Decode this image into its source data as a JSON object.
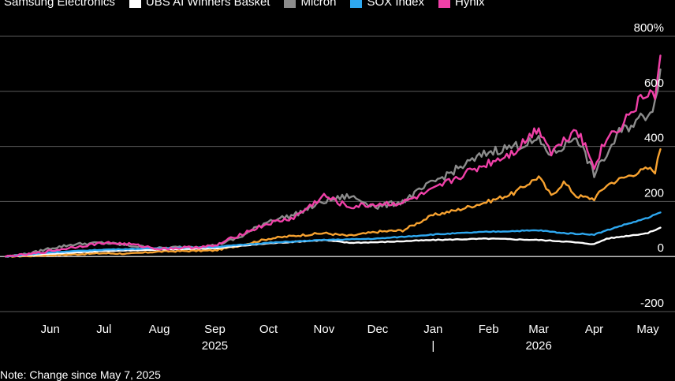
{
  "chart_data": {
    "type": "line",
    "note": "Note: Change since May 7, 2025",
    "legend_placement": "top",
    "grid": true,
    "ylim": [
      -200,
      800
    ],
    "y_ticks": [
      -200,
      0,
      200,
      400,
      600,
      800
    ],
    "y_tick_labels": [
      "-200",
      "0",
      "200",
      "400",
      "600",
      "800%"
    ],
    "x_range": [
      "2025-05-07",
      "2026-05-10"
    ],
    "x_ticks": [
      {
        "date": "2025-06-01",
        "label": "Jun"
      },
      {
        "date": "2025-07-01",
        "label": "Jul"
      },
      {
        "date": "2025-08-01",
        "label": "Aug"
      },
      {
        "date": "2025-09-01",
        "label": "Sep"
      },
      {
        "date": "2025-10-01",
        "label": "Oct"
      },
      {
        "date": "2025-11-01",
        "label": "Nov"
      },
      {
        "date": "2025-12-01",
        "label": "Dec"
      },
      {
        "date": "2026-01-01",
        "label": "Jan"
      },
      {
        "date": "2026-02-01",
        "label": "Feb"
      },
      {
        "date": "2026-03-01",
        "label": "Mar"
      },
      {
        "date": "2026-04-01",
        "label": "Apr"
      },
      {
        "date": "2026-05-01",
        "label": "May"
      }
    ],
    "year_labels": [
      {
        "date": "2025-09-01",
        "label": "2025"
      },
      {
        "date": "2026-03-01",
        "label": "2026"
      }
    ],
    "year_divider_date": "2026-01-01",
    "year_divider_label": "|",
    "series": [
      {
        "name": "Samsung Electronics",
        "color": "#f7a230",
        "points": [
          [
            "2025-05-07",
            0
          ],
          [
            "2025-05-20",
            2
          ],
          [
            "2025-06-01",
            5
          ],
          [
            "2025-06-15",
            8
          ],
          [
            "2025-07-01",
            12
          ],
          [
            "2025-07-15",
            10
          ],
          [
            "2025-08-01",
            18
          ],
          [
            "2025-08-15",
            20
          ],
          [
            "2025-09-01",
            22
          ],
          [
            "2025-09-15",
            40
          ],
          [
            "2025-10-01",
            65
          ],
          [
            "2025-10-15",
            75
          ],
          [
            "2025-11-01",
            85
          ],
          [
            "2025-11-15",
            75
          ],
          [
            "2025-12-01",
            90
          ],
          [
            "2025-12-15",
            95
          ],
          [
            "2026-01-01",
            150
          ],
          [
            "2026-01-15",
            170
          ],
          [
            "2026-02-01",
            200
          ],
          [
            "2026-02-15",
            230
          ],
          [
            "2026-03-01",
            290
          ],
          [
            "2026-03-08",
            220
          ],
          [
            "2026-03-15",
            270
          ],
          [
            "2026-03-22",
            220
          ],
          [
            "2026-04-01",
            210
          ],
          [
            "2026-04-08",
            260
          ],
          [
            "2026-04-15",
            280
          ],
          [
            "2026-05-01",
            320
          ],
          [
            "2026-05-05",
            310
          ],
          [
            "2026-05-08",
            390
          ]
        ]
      },
      {
        "name": "UBS AI Winners Basket",
        "color": "#ffffff",
        "points": [
          [
            "2025-05-07",
            0
          ],
          [
            "2025-06-01",
            10
          ],
          [
            "2025-07-01",
            20
          ],
          [
            "2025-08-01",
            25
          ],
          [
            "2025-09-01",
            30
          ],
          [
            "2025-10-01",
            48
          ],
          [
            "2025-11-01",
            60
          ],
          [
            "2025-11-15",
            50
          ],
          [
            "2025-12-01",
            52
          ],
          [
            "2026-01-01",
            60
          ],
          [
            "2026-02-01",
            65
          ],
          [
            "2026-03-01",
            60
          ],
          [
            "2026-03-15",
            55
          ],
          [
            "2026-04-01",
            45
          ],
          [
            "2026-04-08",
            65
          ],
          [
            "2026-05-01",
            85
          ],
          [
            "2026-05-08",
            105
          ]
        ]
      },
      {
        "name": "Micron",
        "color": "#8c8c8c",
        "points": [
          [
            "2025-05-07",
            0
          ],
          [
            "2025-05-20",
            10
          ],
          [
            "2025-06-01",
            30
          ],
          [
            "2025-06-15",
            45
          ],
          [
            "2025-07-01",
            50
          ],
          [
            "2025-07-15",
            40
          ],
          [
            "2025-08-01",
            30
          ],
          [
            "2025-08-15",
            35
          ],
          [
            "2025-09-01",
            40
          ],
          [
            "2025-09-15",
            70
          ],
          [
            "2025-10-01",
            130
          ],
          [
            "2025-10-15",
            150
          ],
          [
            "2025-11-01",
            200
          ],
          [
            "2025-11-15",
            220
          ],
          [
            "2025-12-01",
            180
          ],
          [
            "2025-12-15",
            200
          ],
          [
            "2026-01-01",
            270
          ],
          [
            "2026-01-15",
            320
          ],
          [
            "2026-02-01",
            380
          ],
          [
            "2026-02-15",
            400
          ],
          [
            "2026-03-01",
            420
          ],
          [
            "2026-03-08",
            370
          ],
          [
            "2026-03-15",
            400
          ],
          [
            "2026-03-22",
            440
          ],
          [
            "2026-04-01",
            300
          ],
          [
            "2026-04-08",
            370
          ],
          [
            "2026-04-15",
            450
          ],
          [
            "2026-05-01",
            520
          ],
          [
            "2026-05-05",
            560
          ],
          [
            "2026-05-08",
            680
          ]
        ]
      },
      {
        "name": "SOX Index",
        "color": "#2ea8f0",
        "points": [
          [
            "2025-05-07",
            0
          ],
          [
            "2025-06-01",
            15
          ],
          [
            "2025-07-01",
            25
          ],
          [
            "2025-08-01",
            30
          ],
          [
            "2025-09-01",
            35
          ],
          [
            "2025-10-01",
            50
          ],
          [
            "2025-11-01",
            60
          ],
          [
            "2025-12-01",
            65
          ],
          [
            "2026-01-01",
            80
          ],
          [
            "2026-02-01",
            90
          ],
          [
            "2026-03-01",
            95
          ],
          [
            "2026-03-15",
            85
          ],
          [
            "2026-04-01",
            80
          ],
          [
            "2026-04-15",
            110
          ],
          [
            "2026-05-01",
            140
          ],
          [
            "2026-05-08",
            160
          ]
        ]
      },
      {
        "name": "Hynix",
        "color": "#f040a8",
        "points": [
          [
            "2025-05-07",
            0
          ],
          [
            "2025-05-20",
            8
          ],
          [
            "2025-06-01",
            20
          ],
          [
            "2025-06-15",
            35
          ],
          [
            "2025-07-01",
            50
          ],
          [
            "2025-07-15",
            45
          ],
          [
            "2025-08-01",
            28
          ],
          [
            "2025-08-15",
            32
          ],
          [
            "2025-09-01",
            38
          ],
          [
            "2025-09-15",
            80
          ],
          [
            "2025-10-01",
            120
          ],
          [
            "2025-10-15",
            140
          ],
          [
            "2025-11-01",
            220
          ],
          [
            "2025-11-15",
            180
          ],
          [
            "2025-12-01",
            190
          ],
          [
            "2025-12-15",
            195
          ],
          [
            "2026-01-01",
            240
          ],
          [
            "2026-01-15",
            290
          ],
          [
            "2026-02-01",
            340
          ],
          [
            "2026-02-15",
            380
          ],
          [
            "2026-03-01",
            470
          ],
          [
            "2026-03-08",
            380
          ],
          [
            "2026-03-15",
            420
          ],
          [
            "2026-03-22",
            470
          ],
          [
            "2026-04-01",
            330
          ],
          [
            "2026-04-08",
            430
          ],
          [
            "2026-04-15",
            470
          ],
          [
            "2026-05-01",
            600
          ],
          [
            "2026-05-05",
            580
          ],
          [
            "2026-05-08",
            730
          ]
        ]
      }
    ]
  }
}
